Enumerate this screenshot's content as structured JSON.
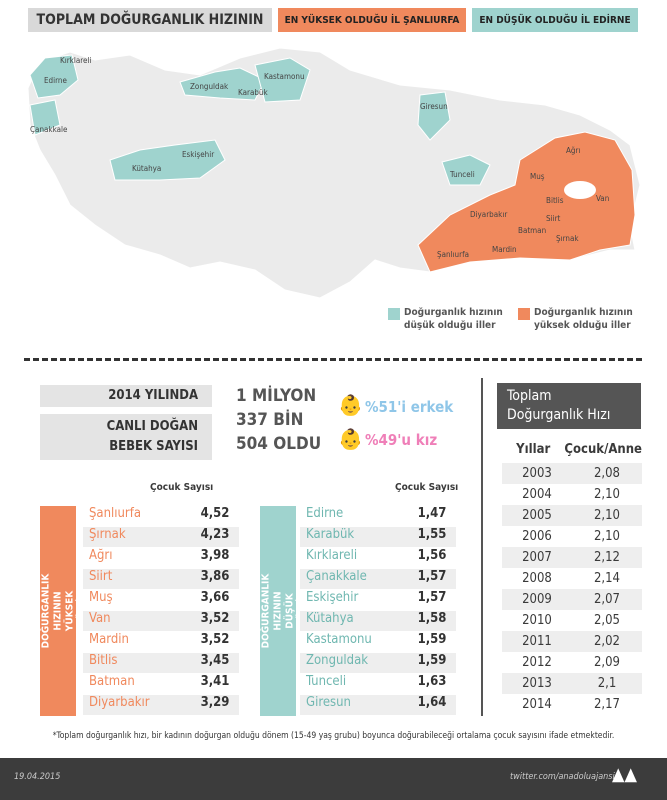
{
  "header": {
    "title": "TOPLAM DOĞURGANLIK HIZININ",
    "highest": "EN YÜKSEK OLDUĞU İL ŞANLIURFA",
    "lowest": "EN DÜŞÜK OLDUĞU İL EDİRNE"
  },
  "colors": {
    "high": "#f0895d",
    "low": "#9fd3ce",
    "neutral": "#ebebeb"
  },
  "map": {
    "low_labels": [
      "Edirne",
      "Kırklareli",
      "Çanakkale",
      "Zonguldak",
      "Karabük",
      "Kastamonu",
      "Giresun",
      "Tunceli",
      "Kütahya",
      "Eskişehir"
    ],
    "high_labels": [
      "Ağrı",
      "Muş",
      "Van",
      "Bitlis",
      "Siirt",
      "Diyarbakır",
      "Batman",
      "Şırnak",
      "Mardin",
      "Şanlıurfa"
    ]
  },
  "legend": {
    "low": "Doğurganlık hızının düşük olduğu iller",
    "high": "Doğurganlık hızının yüksek olduğu iller"
  },
  "stats": {
    "year_label": "2014 YILINDA",
    "births_label_1": "CANLI DOĞAN",
    "births_label_2": "BEBEK SAYISI",
    "num_1": "1 MİLYON",
    "num_2": "337 BİN",
    "num_3": "504 OLDU",
    "male": "%51'i erkek",
    "female": "%49'u kız",
    "male_color": "#8fc6e8",
    "female_color": "#ef7fb8"
  },
  "high_list": {
    "title": "TOPLAM DOĞURGANLIK HIZININ YÜKSEK OLDUĞU İLLER",
    "col": "Çocuk Sayısı",
    "rows": [
      [
        "Şanlıurfa",
        "4,52"
      ],
      [
        "Şırnak",
        "4,23"
      ],
      [
        "Ağrı",
        "3,98"
      ],
      [
        "Siirt",
        "3,86"
      ],
      [
        "Muş",
        "3,66"
      ],
      [
        "Van",
        "3,52"
      ],
      [
        "Mardin",
        "3,52"
      ],
      [
        "Bitlis",
        "3,45"
      ],
      [
        "Batman",
        "3,41"
      ],
      [
        "Diyarbakır",
        "3,29"
      ]
    ]
  },
  "low_list": {
    "title": "TOPLAM DOĞURGANLIK HIZININ DÜŞÜK OLDUĞU İLLER",
    "col": "Çocuk Sayısı",
    "rows": [
      [
        "Edirne",
        "1,47"
      ],
      [
        "Karabük",
        "1,55"
      ],
      [
        "Kırklareli",
        "1,56"
      ],
      [
        "Çanakkale",
        "1,57"
      ],
      [
        "Eskişehir",
        "1,57"
      ],
      [
        "Kütahya",
        "1,58"
      ],
      [
        "Kastamonu",
        "1,59"
      ],
      [
        "Zonguldak",
        "1,59"
      ],
      [
        "Tunceli",
        "1,63"
      ],
      [
        "Giresun",
        "1,64"
      ]
    ]
  },
  "rate_table": {
    "title_1": "Toplam",
    "title_2": "Doğurganlık Hızı",
    "col_year": "Yıllar",
    "col_rate": "Çocuk/Anne",
    "rows": [
      [
        "2003",
        "2,08"
      ],
      [
        "2004",
        "2,10"
      ],
      [
        "2005",
        "2,10"
      ],
      [
        "2006",
        "2,10"
      ],
      [
        "2007",
        "2,12"
      ],
      [
        "2008",
        "2,14"
      ],
      [
        "2009",
        "2,07"
      ],
      [
        "2010",
        "2,05"
      ],
      [
        "2011",
        "2,02"
      ],
      [
        "2012",
        "2,09"
      ],
      [
        "2013",
        "2,1"
      ],
      [
        "2014",
        "2,17"
      ]
    ]
  },
  "footnote": "*Toplam doğurganlık hızı, bir kadının doğurgan olduğu dönem (15-49 yaş grubu) boyunca doğurabileceği ortalama çocuk sayısını ifade etmektedir.",
  "footer": {
    "date": "19.04.2015",
    "twitter": "twitter.com/anadoluajansi",
    "logo": "AA"
  }
}
